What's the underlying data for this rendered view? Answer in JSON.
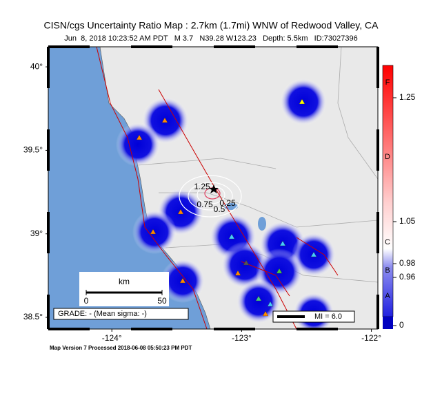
{
  "title": "CISN/cgs Uncertainty Ratio Map : 2.7km (1.7mi) WNW of Redwood Valley, CA",
  "subtitle": "Jun  8, 2018 10:23:52 AM PDT   M 3.7   N39.28 W123.23   Depth: 5.5km   ID:73027396",
  "map": {
    "lon_range": [
      -124.49,
      -121.95
    ],
    "lat_range": [
      38.43,
      40.12
    ],
    "lat_ticks": [
      {
        "value": 40,
        "label": "40°"
      },
      {
        "value": 39.5,
        "label": "39.5°"
      },
      {
        "value": 39,
        "label": "39°"
      },
      {
        "value": 38.5,
        "label": "38.5°"
      }
    ],
    "lon_ticks": [
      {
        "value": -124,
        "label": "-124°"
      },
      {
        "value": -123,
        "label": "-123°"
      },
      {
        "value": -122,
        "label": "-122°"
      }
    ],
    "scale_bar": {
      "unit": "km",
      "ticks": [
        0,
        50
      ]
    },
    "grade": "GRADE: - (Mean sigma: -)",
    "mi_legend": "MI = 6.0",
    "contour_labels": [
      "1.25",
      "0.75",
      "0.5",
      "0.25"
    ]
  },
  "colorbar": {
    "grades": [
      "F",
      "D",
      "C",
      "B",
      "A"
    ],
    "ticks": [
      1.25,
      1.05,
      0.98,
      0.96,
      0
    ]
  },
  "footer": "Map Version 7 Processed 2018-06-08 05:50:23 PM PDT"
}
